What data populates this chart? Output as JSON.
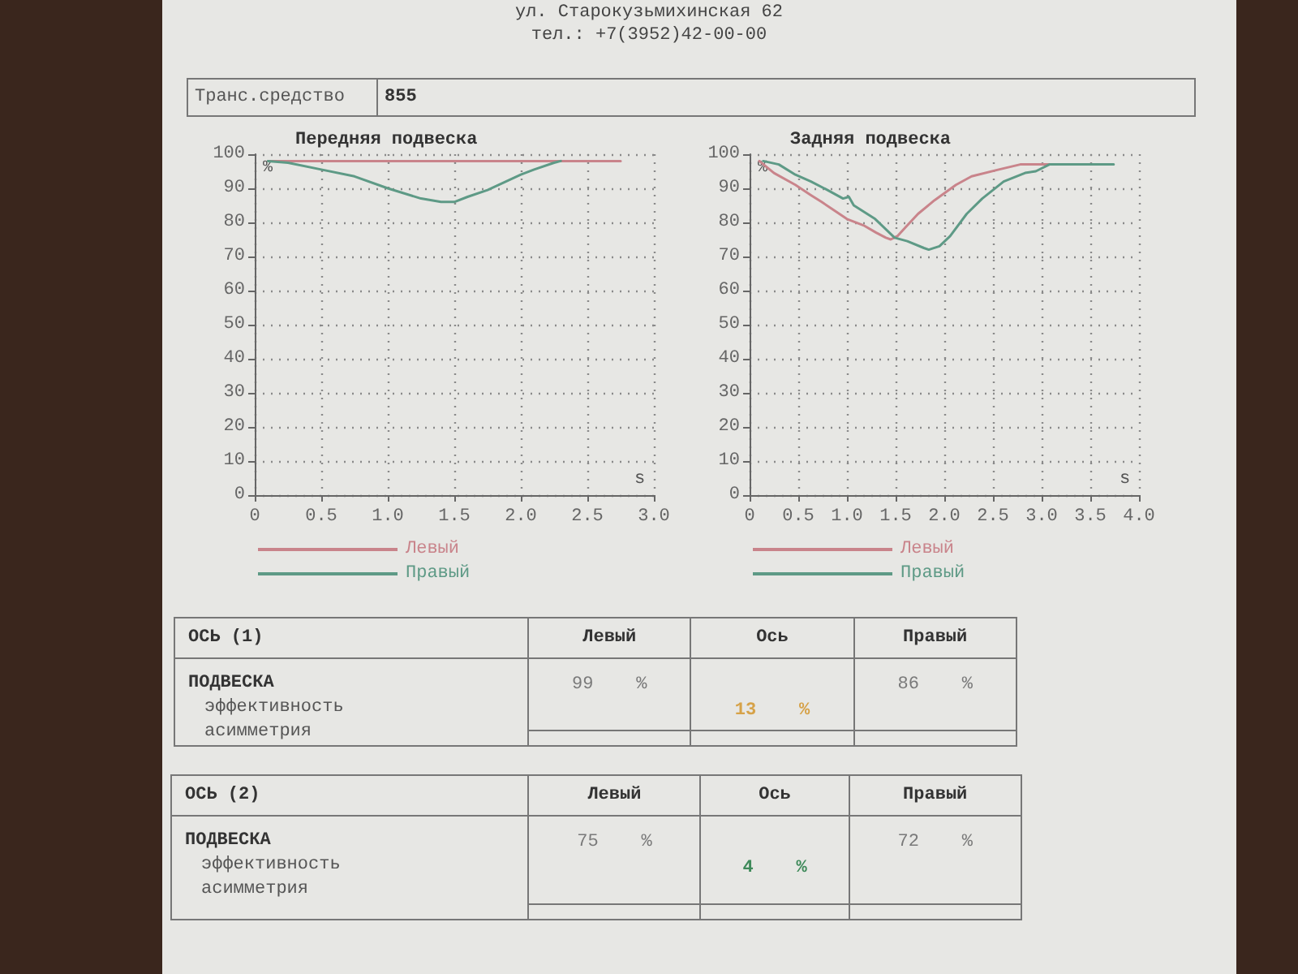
{
  "chart_data": [
    {
      "type": "other",
      "annotations": [
        "ул. Старокузьмихинская 62",
        "тел.: +7(3952)42-00-00",
        "Транс.средство",
        "855"
      ]
    },
    {
      "type": "line",
      "title": "Передняя подвеска",
      "xlabel": "s",
      "ylabel": "%",
      "xlim": [
        0,
        3
      ],
      "xticks": [
        0,
        0.5,
        {
          "value": 1,
          "label": "1.0"
        },
        1.5,
        {
          "value": 2,
          "label": "2.0"
        },
        2.5,
        {
          "value": 3,
          "label": "3.0"
        }
      ],
      "ylim": [
        0,
        100
      ],
      "yticks": [
        0,
        10,
        20,
        30,
        40,
        50,
        60,
        70,
        80,
        90,
        100
      ],
      "grid": true,
      "legend": "bottom",
      "series": [
        {
          "name": "Левый",
          "color": "#c9848b",
          "x": [
            0.1,
            2.75
          ],
          "values": [
            98,
            98
          ]
        },
        {
          "name": "Правый",
          "color": "#5e9a86",
          "x": [
            0.1,
            0.25,
            0.5,
            0.75,
            1.0,
            1.25,
            1.4,
            1.5,
            1.6,
            1.75,
            2.0,
            2.1,
            2.25,
            2.3
          ],
          "values": [
            98,
            97.5,
            95.5,
            93.5,
            90,
            87,
            86,
            86,
            87.5,
            89.5,
            94,
            95.5,
            97.5,
            98
          ]
        }
      ]
    },
    {
      "type": "line",
      "title": "Задняя подвеска",
      "xlabel": "s",
      "ylabel": "%",
      "xlim": [
        0,
        4
      ],
      "xticks": [
        0,
        0.5,
        {
          "value": 1,
          "label": "1.0"
        },
        1.5,
        {
          "value": 2,
          "label": "2.0"
        },
        2.5,
        {
          "value": 3,
          "label": "3.0"
        },
        3.5,
        {
          "value": 4,
          "label": "4.0"
        }
      ],
      "ylim": [
        0,
        100
      ],
      "yticks": [
        0,
        10,
        20,
        30,
        40,
        50,
        60,
        70,
        80,
        90,
        100
      ],
      "grid": true,
      "legend": "bottom",
      "series": [
        {
          "name": "Левый",
          "color": "#c9848b",
          "x": [
            0.1,
            0.25,
            0.47,
            0.63,
            0.74,
            1.0,
            1.18,
            1.3,
            1.4,
            1.45,
            1.52,
            1.6,
            1.73,
            1.9,
            2.12,
            2.28,
            2.56,
            2.78,
            3.08
          ],
          "values": [
            98,
            94.5,
            91,
            88,
            86,
            81,
            79,
            77,
            75.5,
            75,
            76,
            78.5,
            82.5,
            86.5,
            91,
            93.5,
            95.5,
            97,
            97
          ]
        },
        {
          "name": "Правый",
          "color": "#5e9a86",
          "x": [
            0.14,
            0.3,
            0.47,
            0.63,
            0.8,
            0.96,
            1.02,
            1.07,
            1.29,
            1.49,
            1.62,
            1.79,
            1.84,
            1.95,
            2.06,
            2.23,
            2.39,
            2.61,
            2.83,
            2.94,
            3.08,
            3.74
          ],
          "values": [
            98,
            97,
            94,
            92,
            89.5,
            87,
            87.5,
            85,
            81,
            75.5,
            74.5,
            72.5,
            72,
            73,
            76,
            82.5,
            87,
            92,
            94.5,
            95,
            97,
            97
          ]
        }
      ]
    },
    {
      "type": "other",
      "title": "ОСЬ (1)",
      "categories": [
        "Левый",
        "Ось",
        "Правый"
      ],
      "annotations": [
        "ПОДВЕСКА",
        "эффективность",
        "асимметрия",
        "99 %",
        "13 %",
        "86 %"
      ],
      "colors": [
        "#7a7a7a",
        "#d6a248",
        "#7a7a7a"
      ]
    },
    {
      "type": "other",
      "title": "ОСЬ (2)",
      "categories": [
        "Левый",
        "Ось",
        "Правый"
      ],
      "annotations": [
        "ПОДВЕСКА",
        "эффективность",
        "асимметрия",
        "75 %",
        "4 %",
        "72 %"
      ],
      "colors": [
        "#7a7a7a",
        "#3f8a5a",
        "#7a7a7a"
      ]
    }
  ]
}
